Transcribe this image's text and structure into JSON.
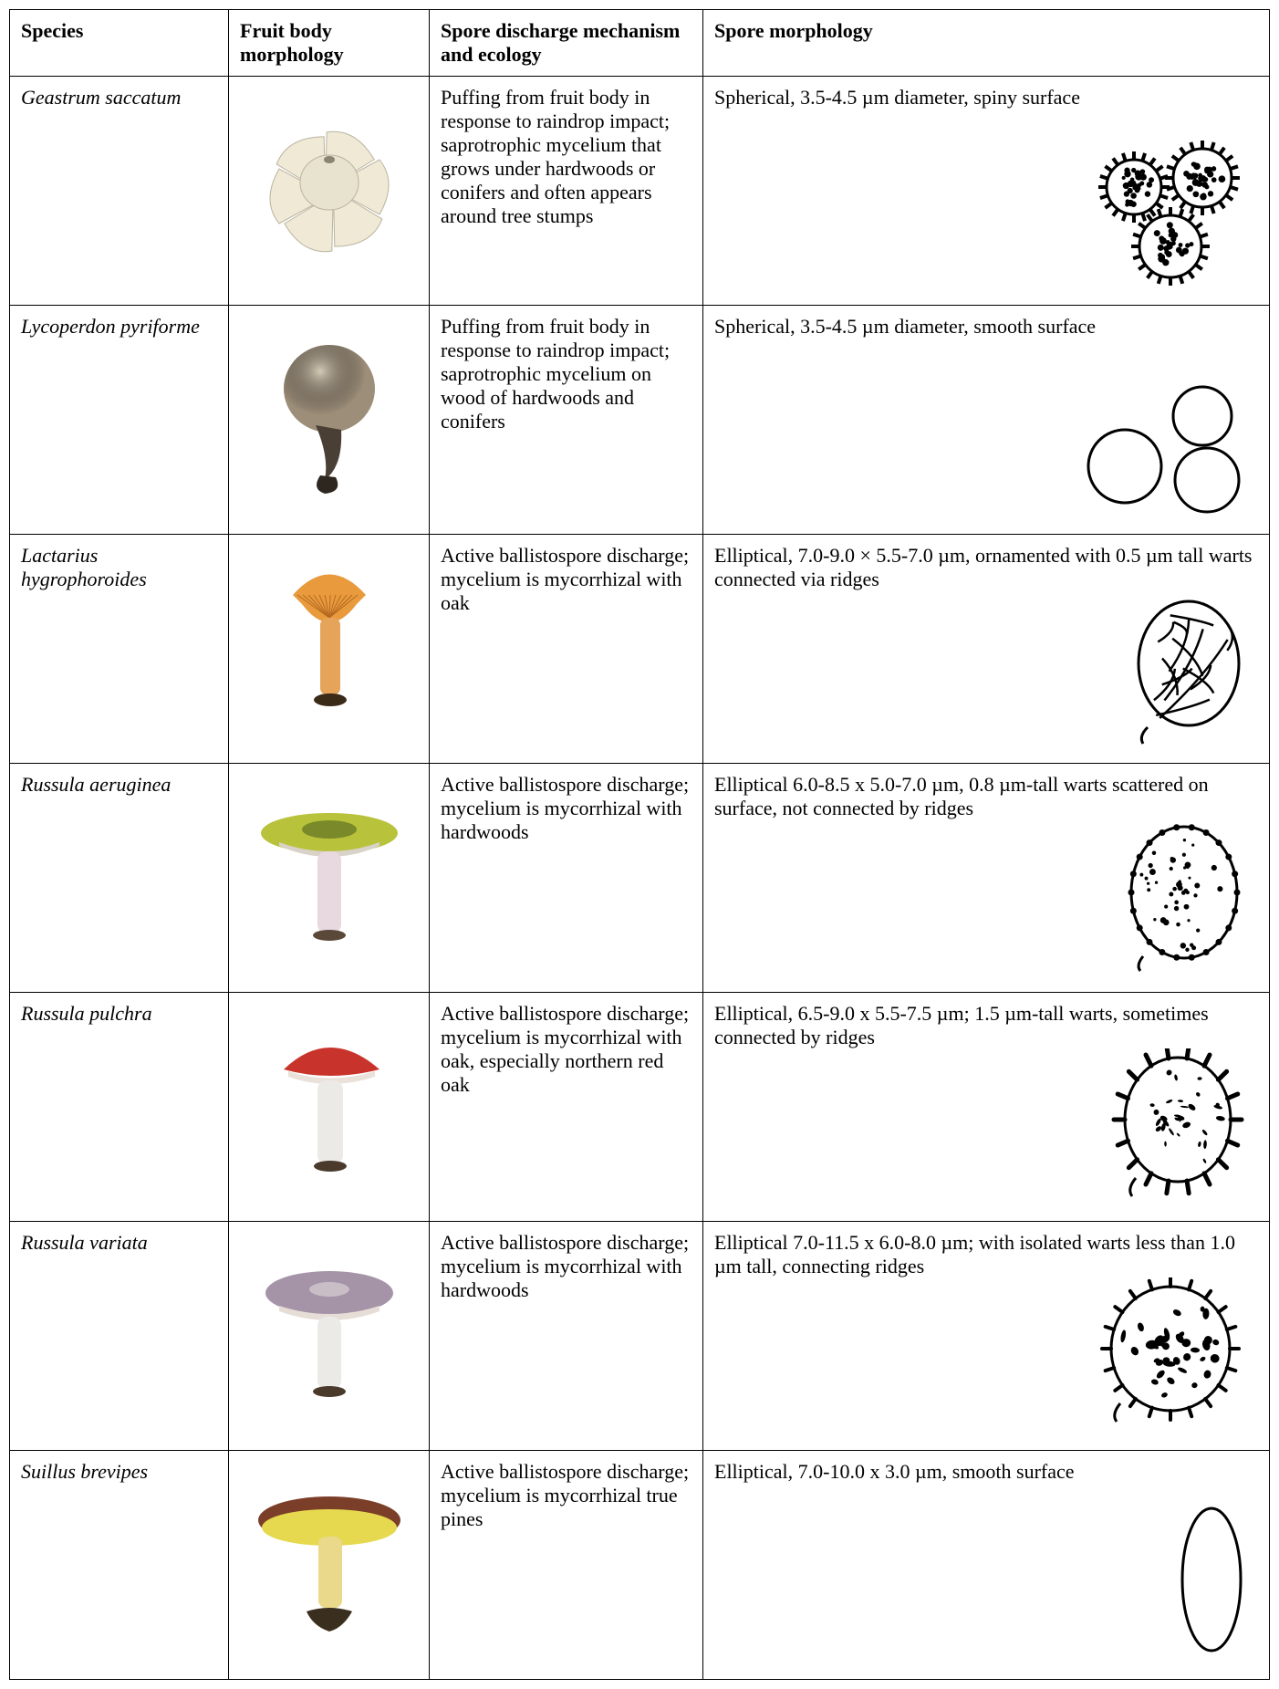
{
  "headers": {
    "species": "Species",
    "fruitbody": "Fruit body morphology",
    "mechanism": "Spore discharge mechanism and ecology",
    "spore": "Spore morphology"
  },
  "rows": [
    {
      "species": "Geastrum saccatum",
      "mechanism": "Puffing from fruit body in response to raindrop impact; saprotrophic mycelium that grows under hardwoods or conifers and often appears around tree stumps",
      "spore_text": "Spherical, 3.5-4.5 µm diameter, spiny surface",
      "spore_shape": "spiny-sphere-cluster",
      "fruit_shape": "earthstar"
    },
    {
      "species": "Lycoperdon pyriforme",
      "mechanism": "Puffing from fruit body in response to raindrop impact; saprotrophic mycelium on wood of hardwoods and conifers",
      "spore_text": "Spherical, 3.5-4.5 µm diameter, smooth surface",
      "spore_shape": "smooth-sphere-cluster",
      "fruit_shape": "puffball"
    },
    {
      "species": "Lactarius hygrophoroides",
      "mechanism": "Active ballistospore discharge; mycelium is mycorrhizal with oak",
      "spore_text": "Elliptical, 7.0-9.0 × 5.5-7.0 µm, ornamented with 0.5 µm tall warts connected via ridges",
      "spore_shape": "reticulate-ellipse",
      "fruit_shape": "orange-funnel"
    },
    {
      "species": "Russula aeruginea",
      "mechanism": "Active ballistospore discharge; mycelium is mycorrhizal with hardwoods",
      "spore_text": "Elliptical 6.0-8.5 x 5.0-7.0 µm, 0.8 µm-tall warts scattered on surface, not connected by ridges",
      "spore_shape": "dotted-ellipse",
      "fruit_shape": "green-russula"
    },
    {
      "species": "Russula pulchra",
      "mechanism": "Active ballistospore discharge; mycelium is mycorrhizal with oak, especially northern red oak",
      "spore_text": "Elliptical, 6.5-9.0 x 5.5-7.5 µm; 1.5 µm-tall warts, sometimes connected by ridges",
      "spore_shape": "spiky-ellipse",
      "fruit_shape": "red-russula"
    },
    {
      "species": "Russula variata",
      "mechanism": "Active ballistospore discharge; mycelium is mycorrhizal with hardwoods",
      "spore_text": "Elliptical 7.0-11.5 x 6.0-8.0 µm; with isolated warts less than 1.0 µm tall, connecting ridges",
      "spore_shape": "warty-ellipse",
      "fruit_shape": "purple-russula"
    },
    {
      "species": "Suillus brevipes",
      "mechanism": "Active ballistospore discharge; mycelium is mycorrhizal true pines",
      "spore_text": "Elliptical, 7.0-10.0 x 3.0 µm, smooth surface",
      "spore_shape": "smooth-narrow-ellipse",
      "fruit_shape": "bolete"
    }
  ],
  "colors": {
    "earthstar_body": "#e8e3cf",
    "earthstar_rays": "#efe9d6",
    "puffball": "#9d8e79",
    "orange_cap": "#e89a3d",
    "orange_stipe": "#e6a45a",
    "green_cap": "#b8c23a",
    "green_center": "#7a8a2a",
    "white_stipe": "#eceae7",
    "pink_stipe": "#e8d8e0",
    "red_cap": "#c8342b",
    "purple_cap": "#a593a8",
    "bolete_cap": "#7b3e28",
    "bolete_pores": "#e6d94f",
    "bolete_stipe": "#ead98a"
  }
}
